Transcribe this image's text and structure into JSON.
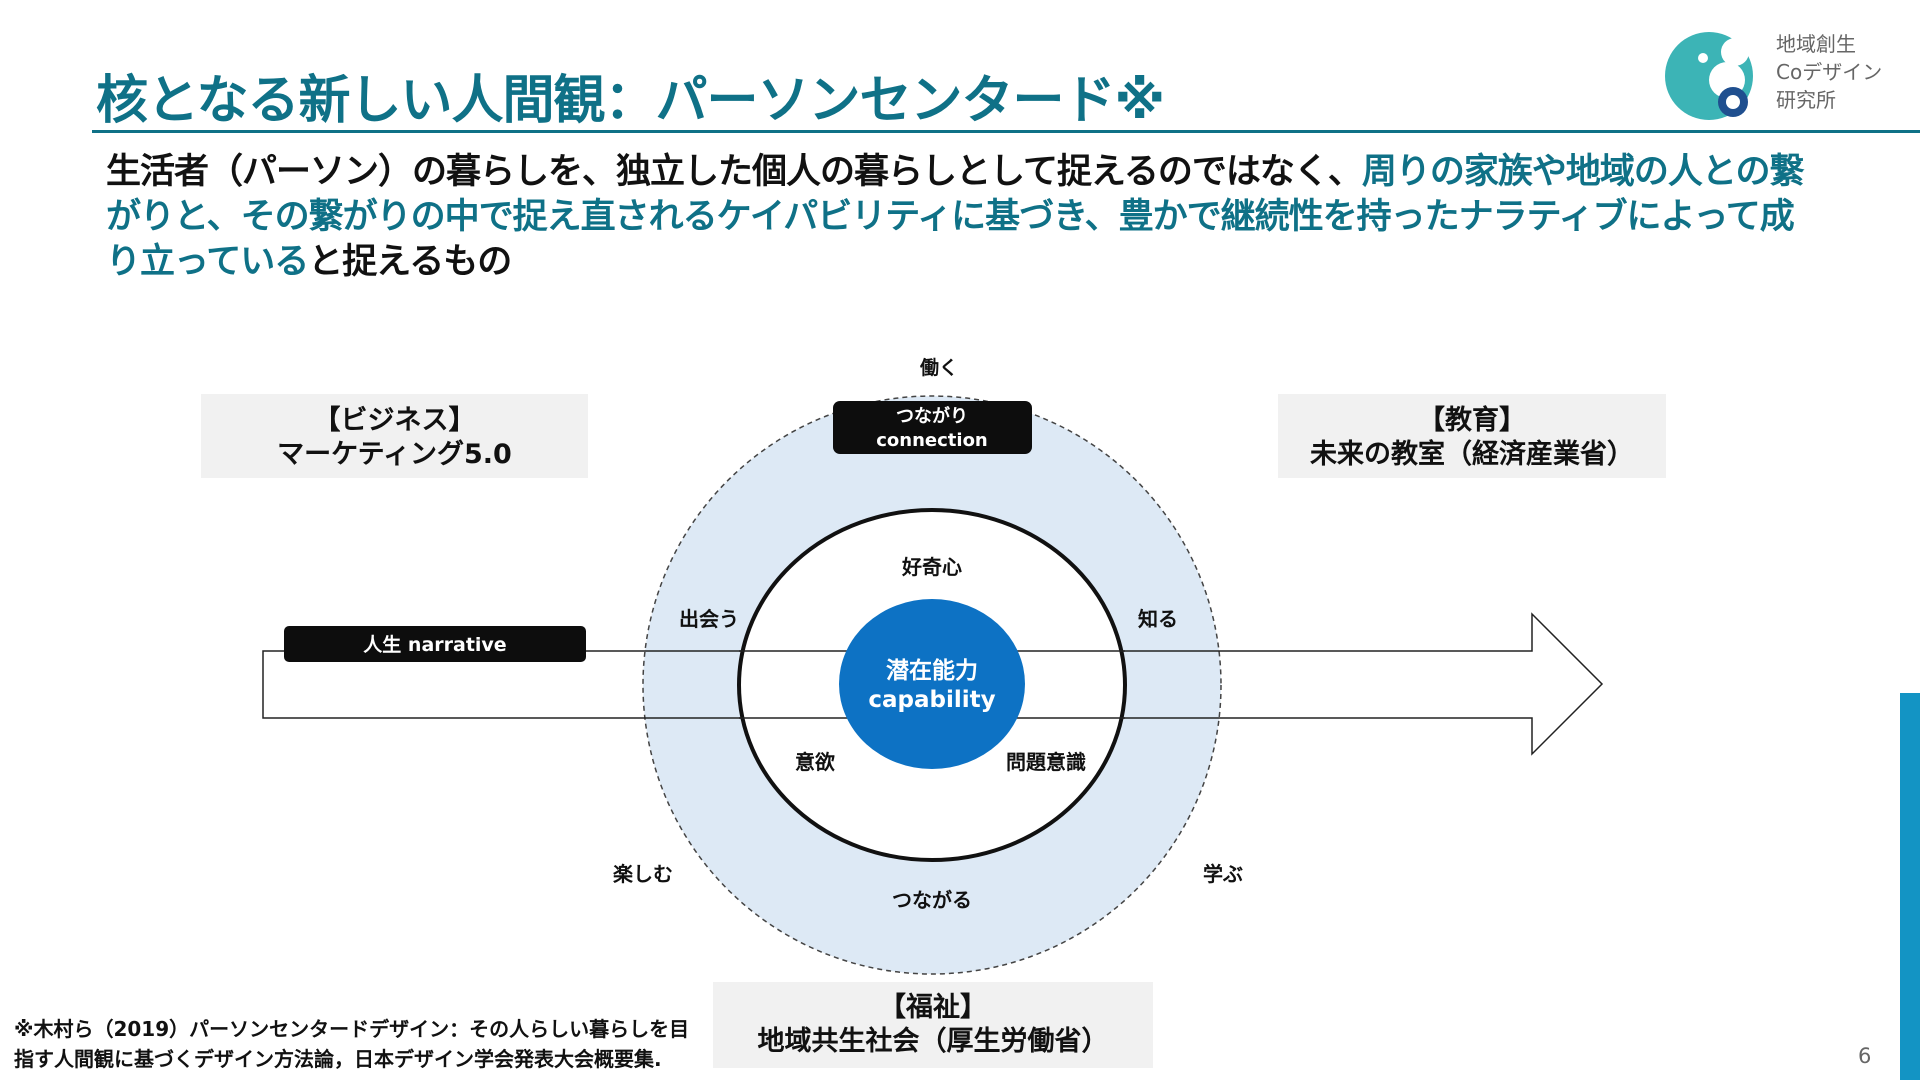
{
  "header": {
    "title": "核となる新しい人間観：パーソンセンタード※",
    "logo_lines": [
      "地域創生",
      "Coデザイン",
      "研究所"
    ]
  },
  "lead": {
    "segments": [
      {
        "text": "生活者（パーソン）の暮らしを、独立した個人の暮らしとして捉えるのではなく、",
        "highlight": false
      },
      {
        "text": "周りの家族や地域の人との繋がりと、その繋がりの中で捉え直されるケイパビリティに基づき、豊かで継続性を持ったナラティブによって成り立っている",
        "highlight": true
      },
      {
        "text": "と捉えるもの",
        "highlight": false
      }
    ]
  },
  "diagram": {
    "top_label": "働く",
    "connection_line1": "つながり",
    "connection_line2": "connection",
    "narrative_label": "人生 narrative",
    "core_line1": "潜在能力",
    "core_line2": "capability",
    "inner_labels": {
      "top": "好奇心",
      "left": "意欲",
      "right": "問題意識"
    },
    "ring_labels": {
      "top_left": "出会う",
      "top_right": "知る",
      "bottom": "つながる",
      "bottom_left": "楽しむ",
      "bottom_right": "学ぶ"
    }
  },
  "boxes": {
    "business": {
      "line1": "【ビジネス】",
      "line2": "マーケティング5.0"
    },
    "education": {
      "line1": "【教育】",
      "line2": "未来の教室（経済産業省）"
    },
    "welfare": {
      "line1": "【福祉】",
      "line2": "地域共生社会（厚生労働省）"
    }
  },
  "footnote": {
    "line1": "※木村ら（2019）パーソンセンタードデザイン：その人らしい暮らしを目",
    "line2": "指す人間観に基づくデザイン方法論，日本デザイン学会発表大会概要集."
  },
  "page_number": "6",
  "colors": {
    "accent_teal": "#0f7187",
    "core_blue": "#0d72c4",
    "ring_fill": "#dde9f5",
    "label_black": "#111111",
    "side_accent": "#1394c4"
  }
}
